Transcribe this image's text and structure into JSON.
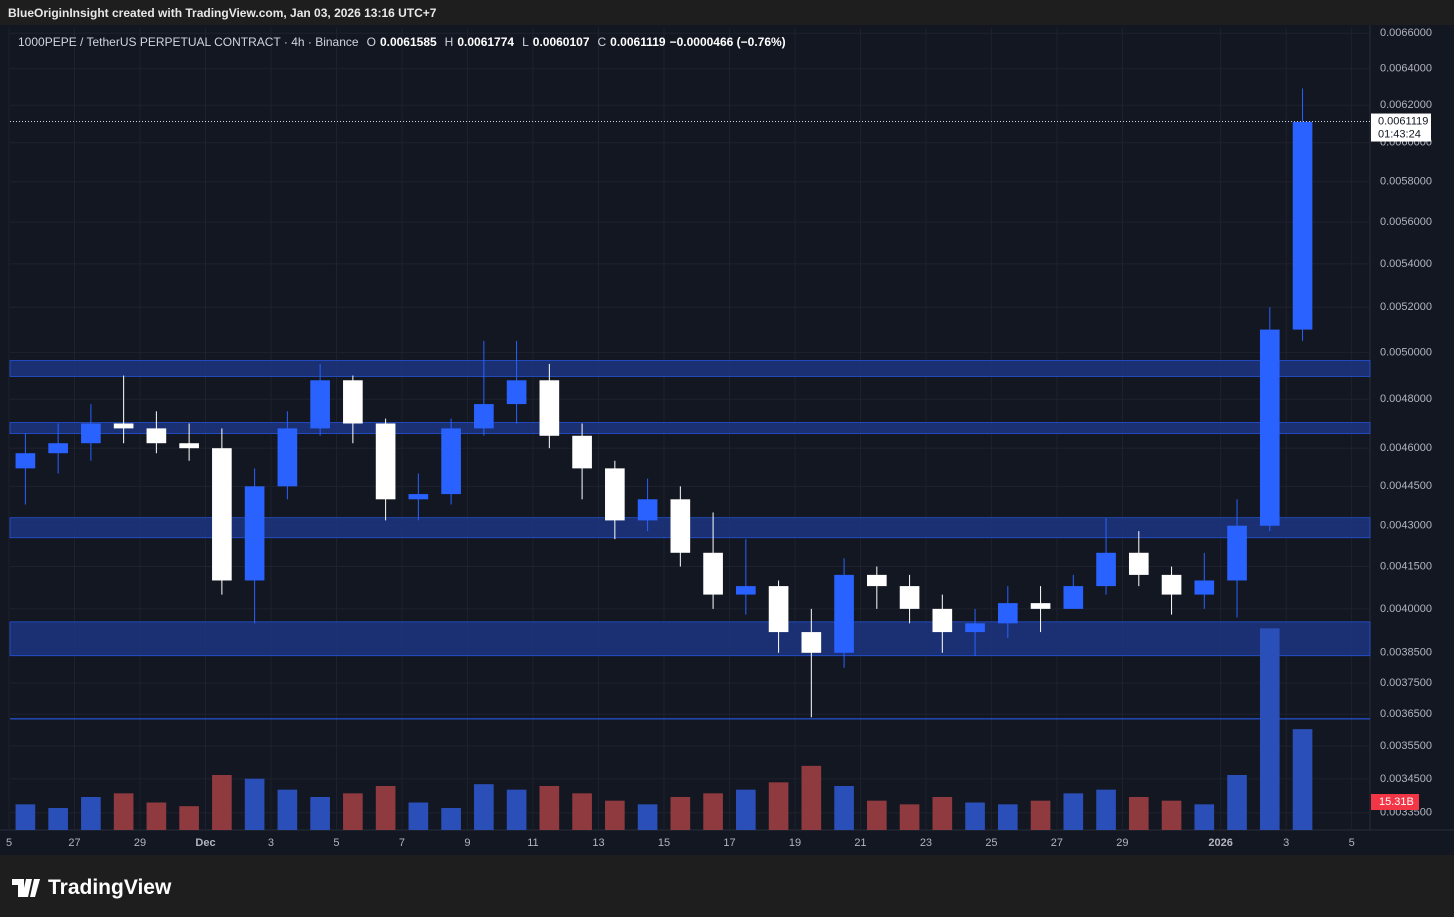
{
  "header": "BlueOriginInsight created with TradingView.com, Jan 03, 2026 13:16 UTC+7",
  "footer": "TradingView",
  "chart_data": {
    "type": "candlestick",
    "symbol": "1000PEPE / TetherUS PERPETUAL CONTRACT · 4h · Binance",
    "ohlc_legend": {
      "o_key": "O",
      "o": "0.0061585",
      "h_key": "H",
      "h": "0.0061774",
      "l_key": "L",
      "l": "0.0060107",
      "c_key": "C",
      "c": "0.0061119",
      "change": "−0.0000466 (−0.76%)"
    },
    "x": [
      0.5,
      1.5,
      2.5,
      3.5,
      4.5,
      5.5,
      6.5,
      7.5,
      8.5,
      9.5,
      10.5,
      11.5,
      12.5,
      13.5,
      14.5,
      15.5,
      16.5,
      17.5,
      18.5,
      19.5,
      20.5,
      21.5,
      22.5,
      23.5,
      24.5,
      25.5,
      26.5,
      27.5,
      28.5,
      29.5,
      30.5,
      31.5,
      32.5,
      33.5,
      34.5,
      35.5,
      36.5,
      37.5,
      38.5,
      39.5
    ],
    "open": [
      0.00452,
      0.00458,
      0.00462,
      0.0047,
      0.00468,
      0.00462,
      0.0046,
      0.0041,
      0.00445,
      0.00468,
      0.00488,
      0.0047,
      0.0044,
      0.00442,
      0.00468,
      0.00478,
      0.00488,
      0.00465,
      0.00452,
      0.00432,
      0.0044,
      0.0042,
      0.00405,
      0.00408,
      0.00392,
      0.00385,
      0.00412,
      0.00408,
      0.004,
      0.00392,
      0.00395,
      0.00402,
      0.004,
      0.00408,
      0.0042,
      0.00412,
      0.00405,
      0.0041,
      0.0043,
      0.0051
    ],
    "high": [
      0.00466,
      0.0047,
      0.00478,
      0.0049,
      0.00475,
      0.0047,
      0.00468,
      0.00452,
      0.00475,
      0.00495,
      0.0049,
      0.00472,
      0.0045,
      0.00472,
      0.00505,
      0.00505,
      0.00495,
      0.0047,
      0.00455,
      0.00448,
      0.00445,
      0.00435,
      0.00425,
      0.0041,
      0.004,
      0.00418,
      0.00415,
      0.00412,
      0.00405,
      0.004,
      0.00408,
      0.00408,
      0.00412,
      0.00433,
      0.00428,
      0.00415,
      0.0042,
      0.0044,
      0.0052,
      0.00629
    ],
    "low": [
      0.00438,
      0.0045,
      0.00455,
      0.00462,
      0.00458,
      0.00455,
      0.00405,
      0.00395,
      0.0044,
      0.00465,
      0.00462,
      0.00432,
      0.00432,
      0.00438,
      0.00465,
      0.0047,
      0.0046,
      0.0044,
      0.00425,
      0.00428,
      0.00415,
      0.004,
      0.00398,
      0.00385,
      0.00364,
      0.0038,
      0.004,
      0.00395,
      0.00385,
      0.00384,
      0.0039,
      0.00392,
      0.004,
      0.00405,
      0.00408,
      0.00398,
      0.004,
      0.00397,
      0.00428,
      0.00505
    ],
    "close": [
      0.00458,
      0.00462,
      0.0047,
      0.00468,
      0.00462,
      0.0046,
      0.0041,
      0.00445,
      0.00468,
      0.00488,
      0.0047,
      0.0044,
      0.00442,
      0.00468,
      0.00478,
      0.00488,
      0.00465,
      0.00452,
      0.00432,
      0.0044,
      0.0042,
      0.00405,
      0.00408,
      0.00392,
      0.00385,
      0.00412,
      0.00408,
      0.004,
      0.00392,
      0.00395,
      0.00402,
      0.004,
      0.00408,
      0.0042,
      0.00412,
      0.00405,
      0.0041,
      0.0043,
      0.0051,
      0.00611
    ],
    "volume": [
      14,
      12,
      18,
      20,
      15,
      13,
      30,
      28,
      22,
      18,
      20,
      24,
      15,
      12,
      25,
      22,
      24,
      20,
      16,
      14,
      18,
      20,
      22,
      26,
      35,
      24,
      16,
      14,
      18,
      15,
      14,
      16,
      20,
      22,
      18,
      16,
      14,
      30,
      110,
      55
    ],
    "vlim": [
      0,
      120
    ],
    "up_color": "#2962ff",
    "down_color": "#ffffff",
    "volume_up_color": "#2a4fb8",
    "volume_down_color": "#8e3a3e",
    "last_price": 0.0061119,
    "countdown": "01:43:24",
    "last_volume_label": "15.31B",
    "zones": [
      {
        "low": 0.004896,
        "high": 0.004965
      },
      {
        "low": 0.004659,
        "high": 0.004704
      },
      {
        "low": 0.004255,
        "high": 0.00433
      },
      {
        "low": 0.00384,
        "high": 0.003955
      }
    ],
    "hline": 0.003635,
    "log_scale": true,
    "grid": true,
    "xlim": [
      0.03,
      41.56
    ],
    "ylim": [
      0.0033,
      0.00663
    ],
    "xticks": [
      {
        "value": 0,
        "label": "5"
      },
      {
        "value": 2,
        "label": "27"
      },
      {
        "value": 4,
        "label": "29"
      },
      {
        "value": 6,
        "label": "Dec"
      },
      {
        "value": 8,
        "label": "3"
      },
      {
        "value": 10,
        "label": "5"
      },
      {
        "value": 12,
        "label": "7"
      },
      {
        "value": 14,
        "label": "9"
      },
      {
        "value": 16,
        "label": "11"
      },
      {
        "value": 18,
        "label": "13"
      },
      {
        "value": 20,
        "label": "15"
      },
      {
        "value": 22,
        "label": "17"
      },
      {
        "value": 24,
        "label": "19"
      },
      {
        "value": 26,
        "label": "21"
      },
      {
        "value": 28,
        "label": "23"
      },
      {
        "value": 30,
        "label": "25"
      },
      {
        "value": 32,
        "label": "27"
      },
      {
        "value": 34,
        "label": "29"
      },
      {
        "value": 37,
        "label": "2026"
      },
      {
        "value": 39,
        "label": "3"
      },
      {
        "value": 41,
        "label": "5"
      }
    ],
    "yticks": [
      {
        "value": 0.0066,
        "label": "0.0066000"
      },
      {
        "value": 0.0064,
        "label": "0.0064000"
      },
      {
        "value": 0.0062,
        "label": "0.0062000"
      },
      {
        "value": 0.006,
        "label": "0.0060000"
      },
      {
        "value": 0.0058,
        "label": "0.0058000"
      },
      {
        "value": 0.0056,
        "label": "0.0056000"
      },
      {
        "value": 0.0054,
        "label": "0.0054000"
      },
      {
        "value": 0.0052,
        "label": "0.0052000"
      },
      {
        "value": 0.005,
        "label": "0.0050000"
      },
      {
        "value": 0.0048,
        "label": "0.0048000"
      },
      {
        "value": 0.0046,
        "label": "0.0046000"
      },
      {
        "value": 0.00445,
        "label": "0.0044500"
      },
      {
        "value": 0.0043,
        "label": "0.0043000"
      },
      {
        "value": 0.00415,
        "label": "0.0041500"
      },
      {
        "value": 0.004,
        "label": "0.0040000"
      },
      {
        "value": 0.00385,
        "label": "0.0038500"
      },
      {
        "value": 0.00375,
        "label": "0.0037500"
      },
      {
        "value": 0.00365,
        "label": "0.0036500"
      },
      {
        "value": 0.00355,
        "label": "0.0035500"
      },
      {
        "value": 0.00345,
        "label": "0.0034500"
      },
      {
        "value": 0.00335,
        "label": "0.0033500"
      }
    ]
  }
}
